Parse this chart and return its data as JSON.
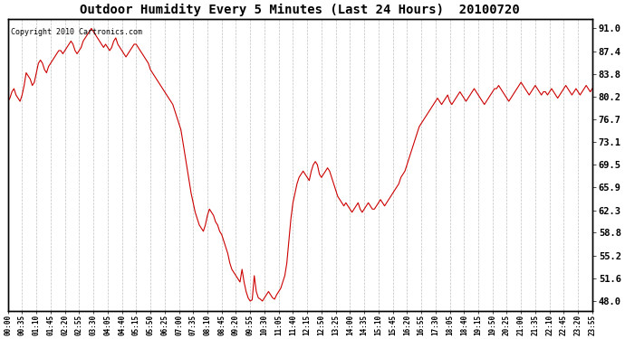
{
  "title": "Outdoor Humidity Every 5 Minutes (Last 24 Hours)  20100720",
  "copyright": "Copyright 2010 Cartronics.com",
  "line_color": "#cc0000",
  "bg_color": "#ffffff",
  "grid_color": "#b0b0b0",
  "yticks": [
    48.0,
    51.6,
    55.2,
    58.8,
    62.3,
    65.9,
    69.5,
    73.1,
    76.7,
    80.2,
    83.8,
    87.4,
    91.0
  ],
  "ylim": [
    46.5,
    92.5
  ],
  "humidity_values": [
    79.5,
    80.0,
    81.0,
    81.5,
    80.5,
    80.0,
    79.5,
    80.5,
    82.0,
    84.0,
    83.5,
    83.0,
    82.0,
    82.5,
    84.0,
    85.5,
    86.0,
    85.5,
    84.5,
    84.0,
    85.0,
    85.5,
    86.0,
    86.5,
    87.0,
    87.5,
    87.5,
    87.0,
    87.5,
    88.0,
    88.5,
    89.0,
    88.5,
    87.5,
    87.0,
    87.5,
    88.0,
    89.0,
    89.5,
    90.0,
    90.5,
    91.0,
    90.5,
    90.0,
    89.5,
    89.0,
    88.5,
    88.0,
    88.5,
    88.0,
    87.5,
    88.0,
    89.0,
    89.5,
    88.5,
    88.0,
    87.5,
    87.0,
    86.5,
    87.0,
    87.5,
    88.0,
    88.5,
    88.5,
    88.0,
    87.5,
    87.0,
    86.5,
    86.0,
    85.5,
    84.5,
    84.0,
    83.5,
    83.0,
    82.5,
    82.0,
    81.5,
    81.0,
    80.5,
    80.0,
    79.5,
    79.0,
    78.0,
    77.0,
    76.0,
    75.0,
    73.0,
    71.0,
    69.0,
    67.0,
    65.0,
    63.5,
    62.0,
    61.0,
    60.0,
    59.5,
    59.0,
    60.0,
    61.5,
    62.5,
    62.0,
    61.5,
    60.5,
    60.0,
    59.0,
    58.5,
    57.5,
    56.5,
    55.5,
    54.0,
    53.0,
    52.5,
    52.0,
    51.5,
    51.0,
    53.0,
    51.0,
    49.5,
    48.5,
    48.0,
    48.2,
    52.0,
    49.5,
    48.5,
    48.3,
    48.0,
    48.5,
    49.0,
    49.5,
    49.0,
    48.5,
    48.3,
    49.0,
    49.5,
    50.0,
    51.0,
    52.0,
    54.0,
    57.5,
    61.0,
    63.5,
    65.0,
    66.5,
    67.5,
    68.0,
    68.5,
    68.0,
    67.5,
    67.0,
    68.5,
    69.5,
    70.0,
    69.5,
    68.0,
    67.5,
    68.0,
    68.5,
    69.0,
    68.5,
    67.5,
    66.5,
    65.5,
    64.5,
    64.0,
    63.5,
    63.0,
    63.5,
    63.0,
    62.5,
    62.0,
    62.5,
    63.0,
    63.5,
    62.5,
    62.0,
    62.5,
    63.0,
    63.5,
    63.0,
    62.5,
    62.5,
    63.0,
    63.5,
    64.0,
    63.5,
    63.0,
    63.5,
    64.0,
    64.5,
    65.0,
    65.5,
    66.0,
    66.5,
    67.5,
    68.0,
    68.5,
    69.5,
    70.5,
    71.5,
    72.5,
    73.5,
    74.5,
    75.5,
    76.0,
    76.5,
    77.0,
    77.5,
    78.0,
    78.5,
    79.0,
    79.5,
    80.0,
    79.5,
    79.0,
    79.5,
    80.0,
    80.5,
    79.5,
    79.0,
    79.5,
    80.0,
    80.5,
    81.0,
    80.5,
    80.0,
    79.5,
    80.0,
    80.5,
    81.0,
    81.5,
    81.0,
    80.5,
    80.0,
    79.5,
    79.0,
    79.5,
    80.0,
    80.5,
    81.0,
    81.5,
    81.5,
    82.0,
    81.5,
    81.0,
    80.5,
    80.0,
    79.5,
    80.0,
    80.5,
    81.0,
    81.5,
    82.0,
    82.5,
    82.0,
    81.5,
    81.0,
    80.5,
    81.0,
    81.5,
    82.0,
    81.5,
    81.0,
    80.5,
    81.0,
    81.0,
    80.5,
    81.0,
    81.5,
    81.0,
    80.5,
    80.0,
    80.5,
    81.0,
    81.5,
    82.0,
    81.5,
    81.0,
    80.5,
    81.0,
    81.5,
    81.0,
    80.5,
    81.0,
    81.5,
    82.0,
    81.5,
    81.0,
    81.5
  ],
  "xtick_labels": [
    "00:00",
    "00:35",
    "01:10",
    "01:45",
    "02:20",
    "02:55",
    "03:30",
    "04:05",
    "04:40",
    "05:15",
    "05:50",
    "06:25",
    "07:00",
    "07:35",
    "08:10",
    "08:45",
    "09:20",
    "09:55",
    "10:30",
    "11:05",
    "11:40",
    "12:15",
    "12:50",
    "13:25",
    "14:00",
    "14:35",
    "15:10",
    "15:45",
    "16:20",
    "16:55",
    "17:30",
    "18:05",
    "18:40",
    "19:15",
    "19:50",
    "20:25",
    "21:00",
    "21:35",
    "22:10",
    "22:45",
    "23:20",
    "23:55"
  ]
}
